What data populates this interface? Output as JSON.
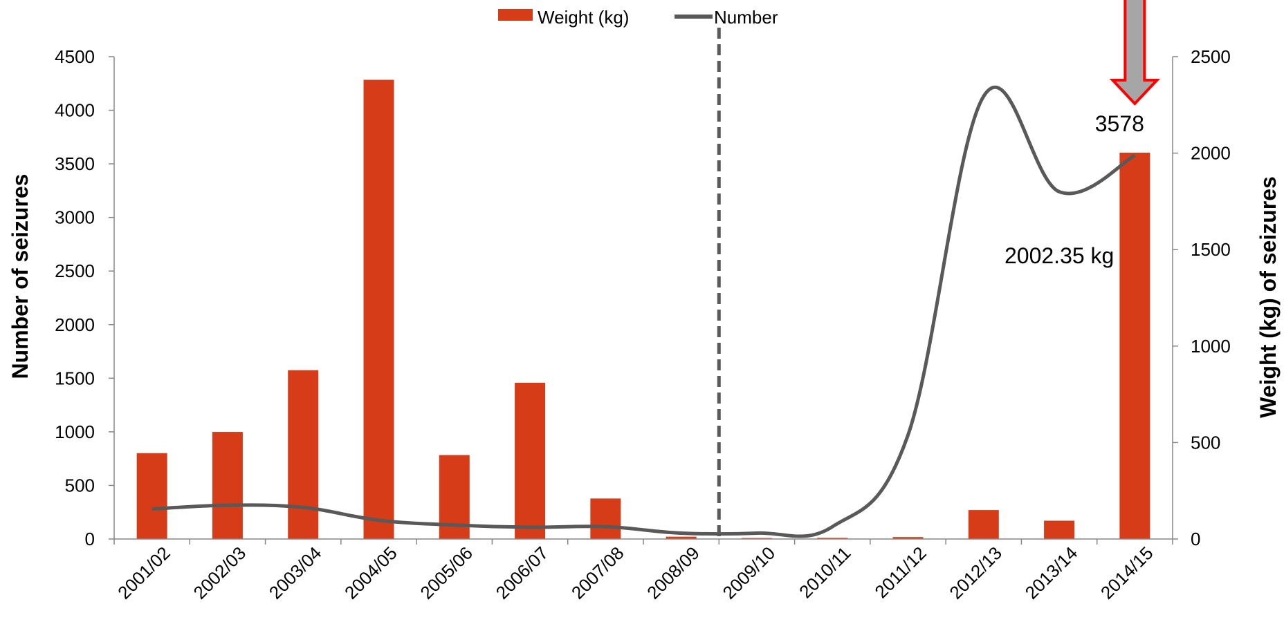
{
  "chart_data": {
    "type": "bar",
    "categories": [
      "2001/02",
      "2002/03",
      "2003/04",
      "2004/05",
      "2005/06",
      "2006/07",
      "2007/08",
      "2008/09",
      "2009/10",
      "2010/11",
      "2011/12",
      "2012/13",
      "2013/14",
      "2014/15"
    ],
    "series": [
      {
        "name": "Weight (kg)",
        "type": "bar",
        "axis": "right",
        "color": "#d63c18",
        "values": [
          445,
          555,
          875,
          2380,
          435,
          810,
          210,
          12,
          5,
          6,
          10,
          150,
          95,
          2002.35
        ]
      },
      {
        "name": "Number",
        "type": "line",
        "axis": "left",
        "color": "#595959",
        "values": [
          280,
          315,
          295,
          175,
          130,
          110,
          115,
          55,
          55,
          115,
          970,
          4130,
          3240,
          3578
        ]
      }
    ],
    "y_left": {
      "label": "Number of seizures",
      "min": 0,
      "max": 4500,
      "step": 500
    },
    "y_right": {
      "label": "Weight (kg) of seizures",
      "min": 0,
      "max": 2500,
      "step": 500
    },
    "vertical_marker": {
      "between": [
        "2008/09",
        "2009/10"
      ],
      "style": "dashed"
    },
    "annotations": [
      {
        "text": "3578",
        "category": "2014/15"
      },
      {
        "text": "2002.35 kg",
        "category": "2014/15"
      }
    ],
    "highlight_arrow": {
      "category": "2014/15",
      "fill": "#a6a6a6",
      "stroke": "#ff0000"
    },
    "legend": {
      "position": "top"
    },
    "grid": false
  }
}
